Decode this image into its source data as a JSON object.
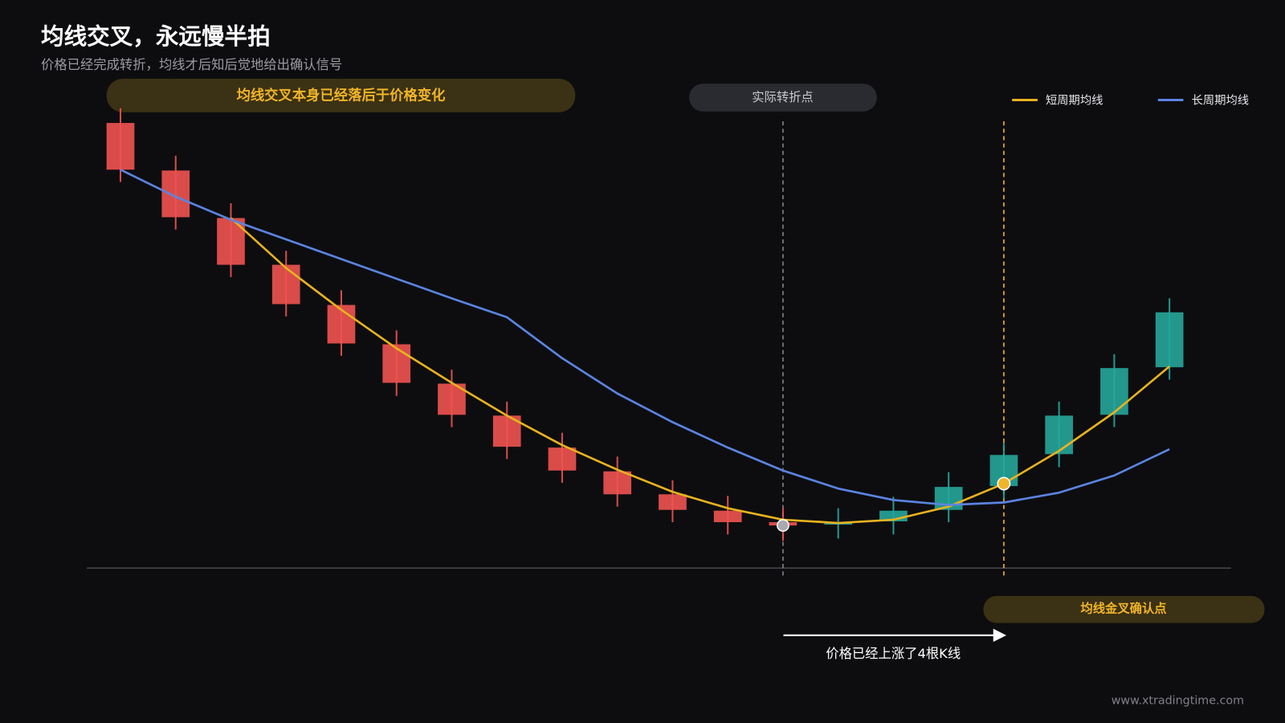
{
  "chart_data": {
    "type": "candlestick",
    "title": "均线交叉，永远慢半拍",
    "subtitle": "价格已经完成转折，均线才后知后觉地给出确认信号",
    "annotations": {
      "lag_note": "均线交叉本身已经落后于价格变化",
      "turning_point": "实际转折点",
      "cross_point": "均线金叉确认点",
      "rise_note": "价格已经上涨了4根K线"
    },
    "watermark": "www.xtradingtime.com",
    "ylim": [
      0.7,
      70
    ],
    "candles": {
      "up_color": "#26a69a",
      "down_color": "#ef5350",
      "open": [
        55.0,
        49.2,
        43.4,
        37.7,
        32.8,
        28.0,
        23.2,
        19.3,
        15.4,
        12.5,
        9.7,
        7.7,
        6.3,
        6.0,
        6.4,
        7.8,
        10.7,
        14.6,
        19.4,
        25.2
      ],
      "high": [
        56.8,
        51.0,
        45.2,
        39.4,
        34.6,
        29.7,
        24.9,
        21.0,
        17.2,
        14.3,
        11.4,
        9.5,
        8.0,
        8.0,
        9.4,
        12.4,
        16.0,
        21.0,
        26.8,
        33.6
      ],
      "low": [
        47.8,
        42.0,
        36.2,
        31.4,
        26.6,
        21.7,
        17.9,
        14.0,
        11.1,
        8.2,
        6.3,
        4.8,
        4.0,
        4.3,
        4.8,
        6.3,
        9.1,
        13.0,
        17.9,
        23.7
      ],
      "close": [
        49.3,
        43.5,
        37.7,
        32.9,
        28.1,
        23.3,
        19.4,
        15.5,
        12.6,
        9.7,
        7.8,
        6.3,
        5.9,
        6.3,
        7.7,
        10.6,
        14.5,
        19.3,
        25.1,
        31.9
      ]
    },
    "series": [
      {
        "name": "短周期均线",
        "color": "#e8b21f",
        "values": [
          null,
          null,
          43.4,
          37.3,
          32.2,
          27.5,
          23.3,
          19.3,
          15.7,
          12.7,
          10.0,
          8.0,
          6.6,
          6.2,
          6.6,
          8.2,
          11.0,
          15.0,
          19.7,
          25.3
        ]
      },
      {
        "name": "长周期均线",
        "color": "#5b84e0",
        "values": [
          49.3,
          46.0,
          43.2,
          40.8,
          38.4,
          36.0,
          33.6,
          31.3,
          26.3,
          22.0,
          18.5,
          15.4,
          12.6,
          10.4,
          9.0,
          8.4,
          8.7,
          9.9,
          12.0,
          15.2
        ]
      }
    ]
  }
}
